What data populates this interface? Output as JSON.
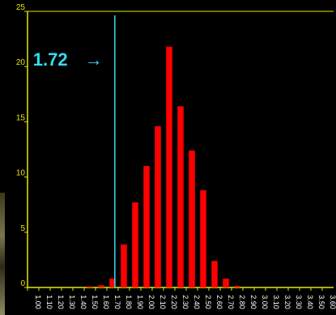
{
  "chart_data": {
    "type": "bar",
    "title": "",
    "xlabel": "",
    "ylabel": "",
    "categories": [
      "1.00",
      "1.10",
      "1.20",
      "1.30",
      "1.40",
      "1.50",
      "1.60",
      "1.70",
      "1.80",
      "1.90",
      "2.00",
      "2.10",
      "2.20",
      "2.30",
      "2.40",
      "2.50",
      "2.60",
      "2.70",
      "2.80",
      "2.90",
      "3.00",
      "3.10",
      "3.20",
      "3.30",
      "3.40",
      "3.50",
      "3.60"
    ],
    "values": [
      0,
      0,
      0,
      0,
      0,
      0.1,
      0.2,
      0.8,
      3.9,
      7.7,
      11.0,
      14.6,
      21.8,
      16.4,
      12.4,
      8.8,
      2.4,
      0.8,
      0.15,
      0,
      0,
      0,
      0,
      0,
      0,
      0,
      0
    ],
    "ylim": [
      0,
      25
    ],
    "yticks": [
      0,
      5,
      10,
      15,
      20,
      25
    ],
    "grid": false,
    "bar_color": "#ff0000",
    "axis_color": "#e6e600",
    "annotation": {
      "text": "1.72",
      "value": 1.72,
      "color": "#33ddee"
    }
  }
}
